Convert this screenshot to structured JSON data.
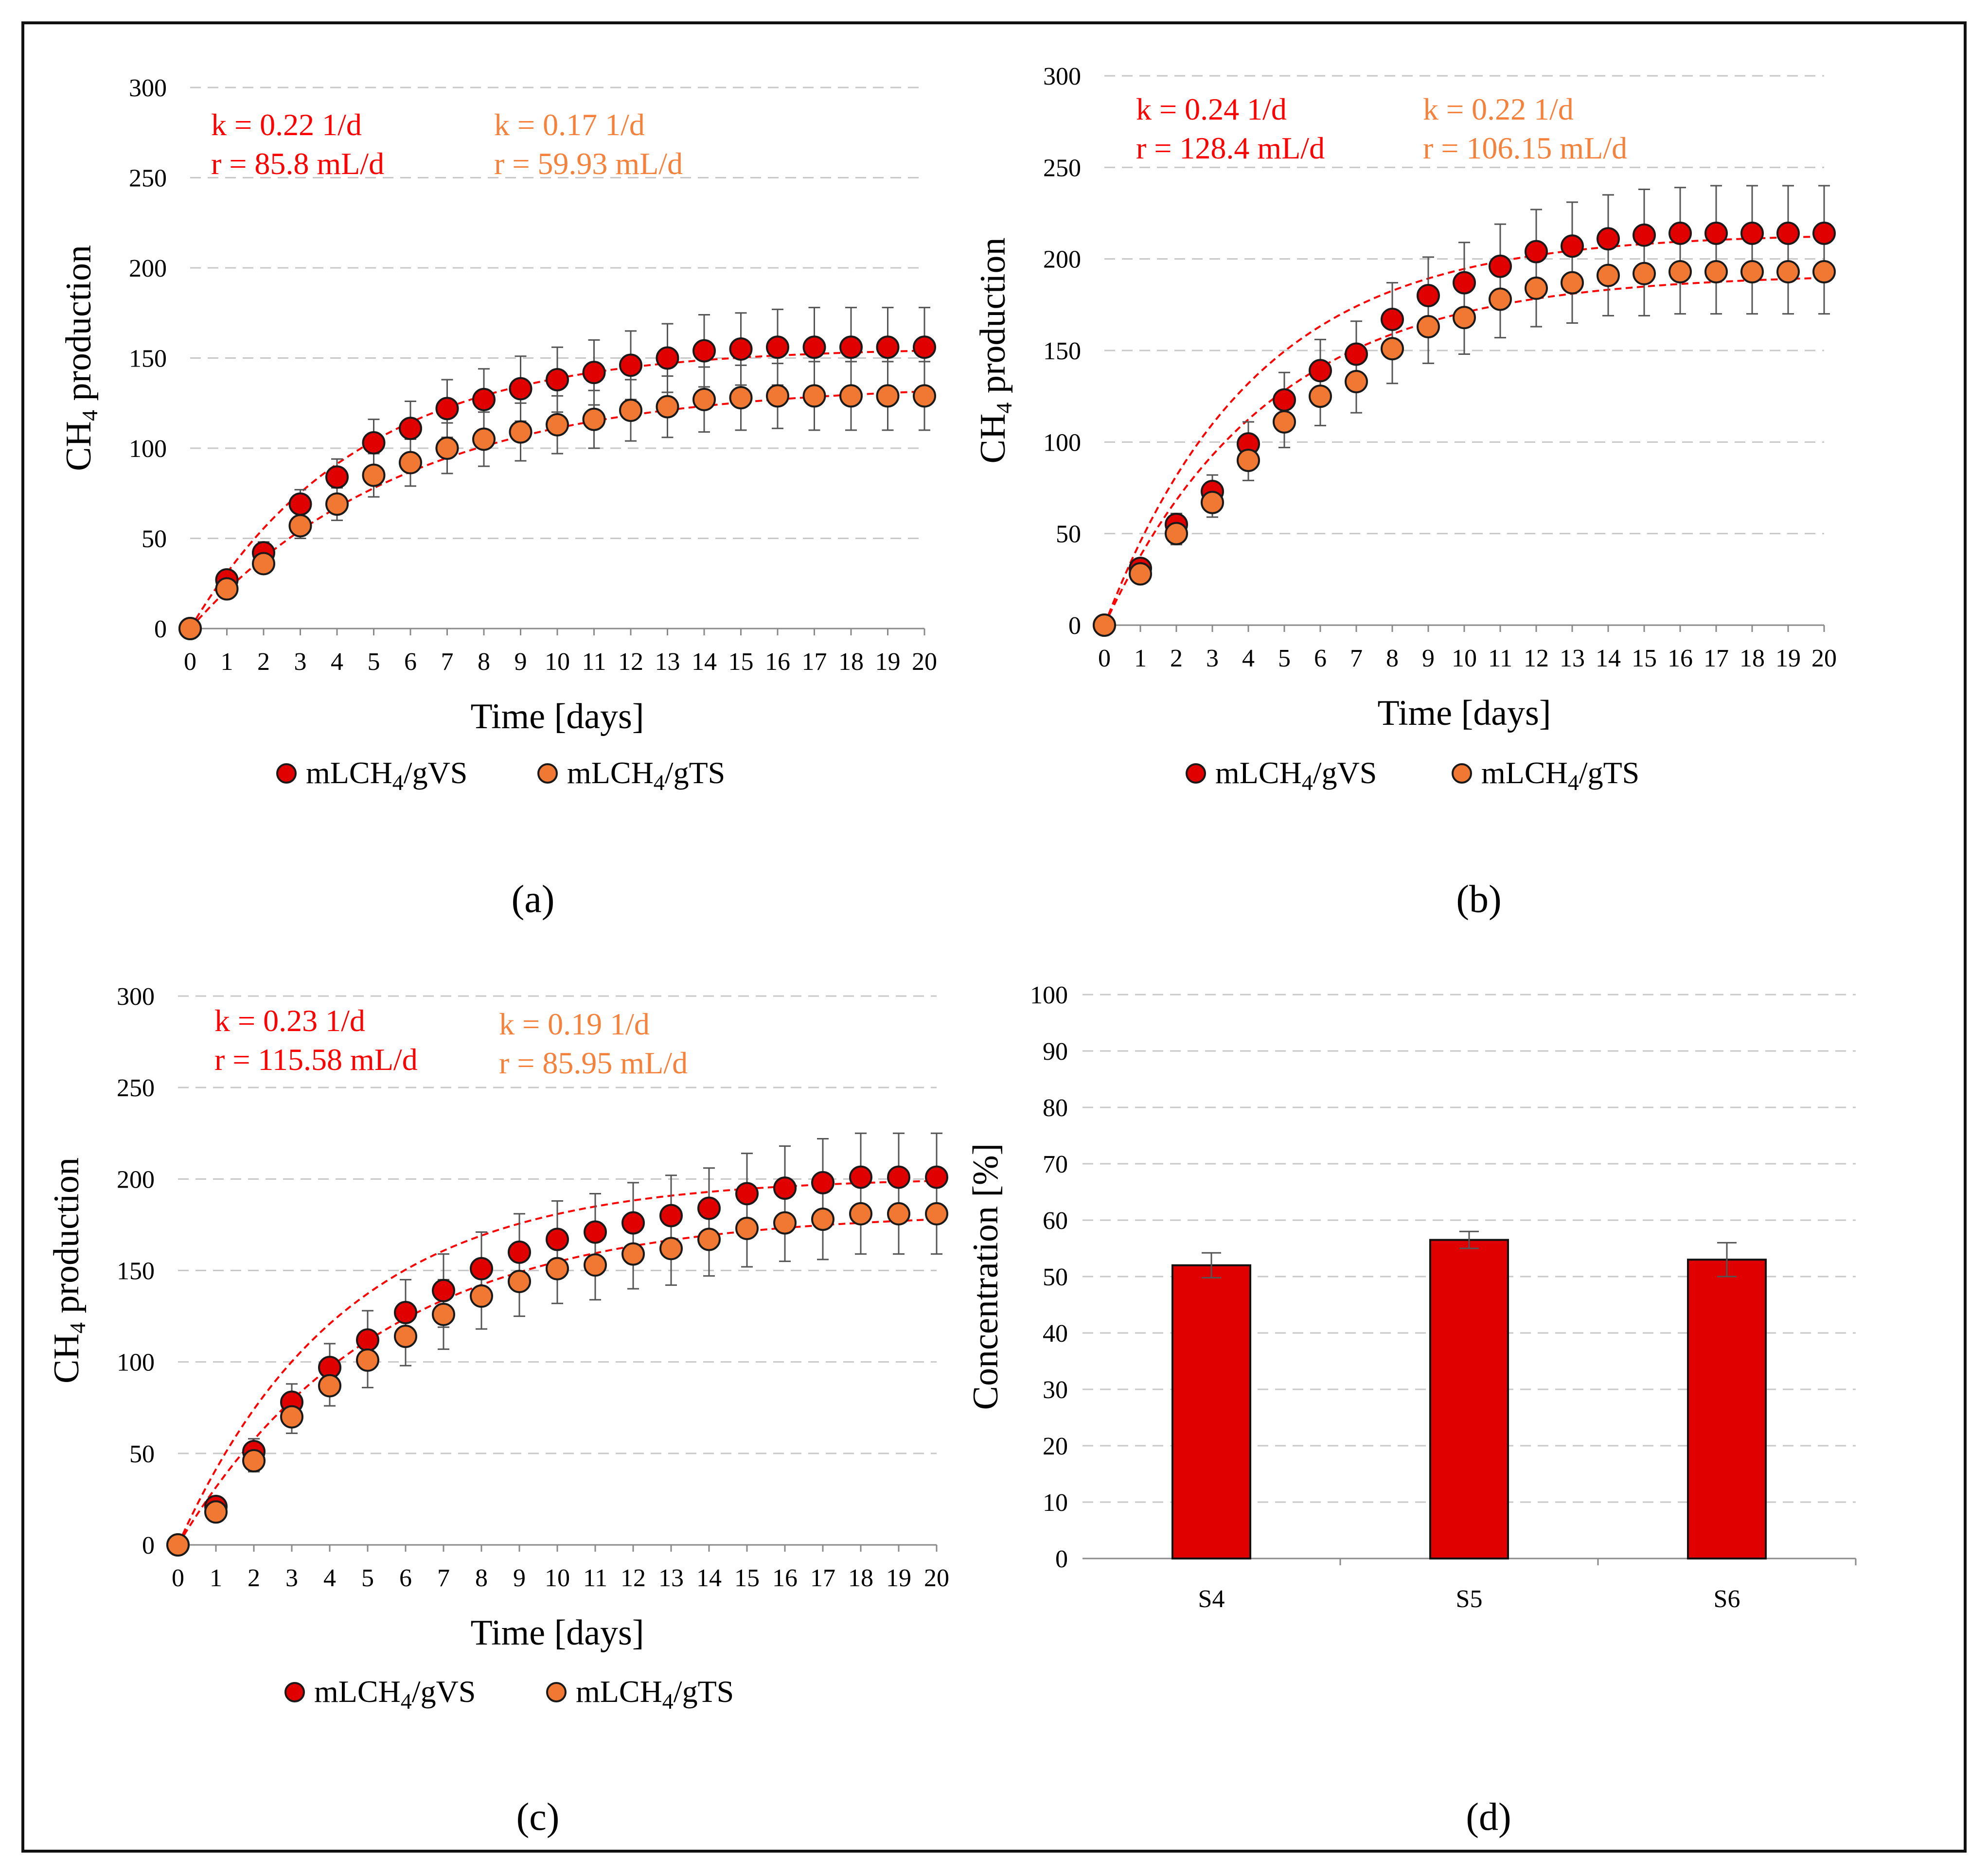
{
  "colors": {
    "series_vs": "#e00000",
    "series_ts": "#f07832",
    "annot_vs": "#ff0000",
    "annot_ts": "#f5823c",
    "fit_line": "#ff0000",
    "grid": "#c8c8c8",
    "error_bar": "#555555"
  },
  "chart_data": [
    {
      "panel": "(a)",
      "type": "scatter",
      "xlabel": "Time [days]",
      "ylabel_main": "CH",
      "ylabel_sub": "4",
      "ylabel_rest": " production",
      "ylim": [
        0,
        300
      ],
      "yticks": [
        0,
        50,
        100,
        150,
        200,
        250,
        300
      ],
      "xlim": [
        0,
        20
      ],
      "x": [
        0,
        1,
        2,
        3,
        4,
        5,
        6,
        7,
        8,
        9,
        10,
        11,
        12,
        13,
        14,
        15,
        16,
        17,
        18,
        19,
        20
      ],
      "legend_position": "bottom",
      "annotations": {
        "vs_k": "k = 0.22 1/d",
        "vs_r": "r = 85.8 mL/d",
        "ts_k": "k = 0.17 1/d",
        "ts_r": "r = 59.93 mL/d"
      },
      "series": [
        {
          "name_main": "mLCH",
          "name_sub": "4",
          "name_rest": "/gVS",
          "color": "series_vs",
          "values": [
            0,
            27,
            42,
            69,
            84,
            103,
            111,
            122,
            127,
            133,
            138,
            142,
            146,
            150,
            154,
            155,
            156,
            156,
            156,
            156,
            156
          ],
          "errors": [
            0,
            5,
            6,
            8,
            10,
            13,
            15,
            16,
            17,
            18,
            18,
            18,
            19,
            19,
            20,
            20,
            21,
            22,
            22,
            22,
            22
          ],
          "fit": {
            "ymax": 156,
            "k": 0.22
          }
        },
        {
          "name_main": "mLCH",
          "name_sub": "4",
          "name_rest": "/gTS",
          "color": "series_ts",
          "values": [
            0,
            22,
            36,
            57,
            69,
            85,
            92,
            100,
            105,
            109,
            113,
            116,
            121,
            123,
            127,
            128,
            129,
            129,
            129,
            129,
            129
          ],
          "errors": [
            0,
            4,
            5,
            7,
            9,
            12,
            13,
            14,
            15,
            16,
            16,
            16,
            17,
            17,
            18,
            18,
            18,
            19,
            19,
            19,
            19
          ],
          "fit": {
            "ymax": 136,
            "k": 0.17
          }
        }
      ]
    },
    {
      "panel": "(b)",
      "type": "scatter",
      "xlabel": "Time [days]",
      "ylabel_main": "CH",
      "ylabel_sub": "4",
      "ylabel_rest": " production",
      "ylim": [
        0,
        300
      ],
      "yticks": [
        0,
        50,
        100,
        150,
        200,
        250,
        300
      ],
      "xlim": [
        0,
        20
      ],
      "x": [
        0,
        1,
        2,
        3,
        4,
        5,
        6,
        7,
        8,
        9,
        10,
        11,
        12,
        13,
        14,
        15,
        16,
        17,
        18,
        19,
        20
      ],
      "legend_position": "bottom",
      "annotations": {
        "vs_k": "k = 0.24 1/d",
        "vs_r": "r = 128.4 mL/d",
        "ts_k": "k = 0.22 1/d",
        "ts_r": "r = 106.15 mL/d"
      },
      "series": [
        {
          "name_main": "mLCH",
          "name_sub": "4",
          "name_rest": "/gVS",
          "color": "series_vs",
          "values": [
            0,
            31,
            55,
            73,
            99,
            123,
            139,
            148,
            167,
            180,
            187,
            196,
            204,
            207,
            211,
            213,
            214,
            214,
            214,
            214,
            214
          ],
          "errors": [
            0,
            4,
            6,
            9,
            12,
            15,
            17,
            18,
            20,
            21,
            22,
            23,
            23,
            24,
            24,
            25,
            25,
            26,
            26,
            26,
            26
          ],
          "fit": {
            "ymax": 214,
            "k": 0.24
          }
        },
        {
          "name_main": "mLCH",
          "name_sub": "4",
          "name_rest": "/gTS",
          "color": "series_ts",
          "values": [
            0,
            28,
            50,
            67,
            90,
            111,
            125,
            133,
            151,
            163,
            168,
            178,
            184,
            187,
            191,
            192,
            193,
            193,
            193,
            193,
            193
          ],
          "errors": [
            0,
            4,
            6,
            8,
            11,
            14,
            16,
            17,
            19,
            20,
            20,
            21,
            21,
            22,
            22,
            23,
            23,
            23,
            23,
            23,
            23
          ],
          "fit": {
            "ymax": 192,
            "k": 0.22
          }
        }
      ]
    },
    {
      "panel": "(c)",
      "type": "scatter",
      "xlabel": "Time [days]",
      "ylabel_main": "CH",
      "ylabel_sub": "4",
      "ylabel_rest": " production",
      "ylim": [
        0,
        300
      ],
      "yticks": [
        0,
        50,
        100,
        150,
        200,
        250,
        300
      ],
      "xlim": [
        0,
        20
      ],
      "x": [
        0,
        1,
        2,
        3,
        4,
        5,
        6,
        7,
        8,
        9,
        10,
        11,
        12,
        13,
        14,
        15,
        16,
        17,
        18,
        19,
        20
      ],
      "legend_position": "bottom",
      "annotations": {
        "vs_k": "k = 0.23 1/d",
        "vs_r": "r = 115.58 mL/d",
        "ts_k": "k = 0.19 1/d",
        "ts_r": "r = 85.95 mL/d"
      },
      "series": [
        {
          "name_main": "mLCH",
          "name_sub": "4",
          "name_rest": "/gVS",
          "color": "series_vs",
          "values": [
            0,
            21,
            51,
            78,
            97,
            112,
            127,
            139,
            151,
            160,
            167,
            171,
            176,
            180,
            184,
            192,
            195,
            198,
            201,
            201,
            201
          ],
          "errors": [
            0,
            4,
            7,
            10,
            13,
            16,
            18,
            20,
            20,
            21,
            21,
            21,
            22,
            22,
            22,
            22,
            23,
            24,
            24,
            24,
            24
          ],
          "fit": {
            "ymax": 201,
            "k": 0.23
          }
        },
        {
          "name_main": "mLCH",
          "name_sub": "4",
          "name_rest": "/gTS",
          "color": "series_ts",
          "values": [
            0,
            18,
            46,
            70,
            87,
            101,
            114,
            126,
            136,
            144,
            151,
            153,
            159,
            162,
            167,
            173,
            176,
            178,
            181,
            181,
            181
          ],
          "errors": [
            0,
            3,
            6,
            9,
            11,
            15,
            16,
            19,
            18,
            19,
            19,
            19,
            19,
            20,
            20,
            21,
            21,
            22,
            22,
            22,
            22
          ],
          "fit": {
            "ymax": 182,
            "k": 0.19
          }
        }
      ]
    },
    {
      "panel": "(d)",
      "type": "bar",
      "ylabel": "Concentration [%]",
      "ylim": [
        0,
        100
      ],
      "yticks": [
        0,
        10,
        20,
        30,
        40,
        50,
        60,
        70,
        80,
        90,
        100
      ],
      "categories": [
        "S4",
        "S5",
        "S6"
      ],
      "values": [
        52,
        56.5,
        53
      ],
      "errors": [
        2.2,
        1.5,
        3
      ],
      "color": "series_vs"
    }
  ]
}
